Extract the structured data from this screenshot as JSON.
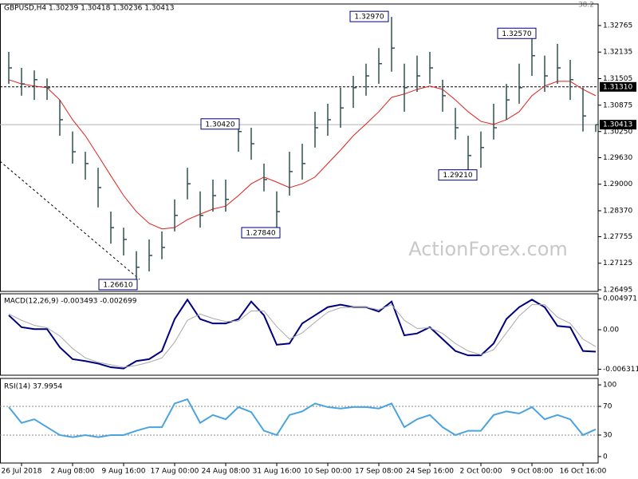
{
  "chart_data": [
    {
      "type": "ohlc",
      "title": "GBPUSD,H4  1.30239 1.30418 1.30236 1.30413",
      "color": "#2f4f4f",
      "high": [
        1.3214,
        1.3176,
        1.317,
        1.3151,
        1.31,
        1.3025,
        1.2977,
        1.2939,
        1.2835,
        1.2797,
        1.2741,
        1.2769,
        1.2788,
        1.2864,
        1.2939,
        1.2883,
        1.2911,
        1.2911,
        1.3042,
        1.3034,
        1.2949,
        1.2883,
        1.2977,
        1.2996,
        1.3072,
        1.3091,
        1.3129,
        1.3157,
        1.3186,
        1.3223,
        1.3297,
        1.3186,
        1.3205,
        1.3214,
        1.3148,
        1.3081,
        1.3015,
        1.3025,
        1.3091,
        1.3138,
        1.3186,
        1.3257,
        1.3205,
        1.3233,
        1.3195,
        1.3129,
        1.3042
      ],
      "low": [
        1.3138,
        1.311,
        1.31,
        1.31,
        1.3015,
        1.2949,
        1.2911,
        1.2845,
        1.2759,
        1.2731,
        1.2661,
        1.2693,
        1.2722,
        1.2788,
        1.2864,
        1.2797,
        1.2835,
        1.2835,
        1.2977,
        1.2958,
        1.2883,
        1.2784,
        1.2873,
        1.2911,
        1.2987,
        1.3015,
        1.3034,
        1.3081,
        1.311,
        1.3138,
        1.3167,
        1.3072,
        1.3119,
        1.3138,
        1.3072,
        1.3006,
        1.2921,
        1.2939,
        1.3006,
        1.3053,
        1.3091,
        1.3157,
        1.3119,
        1.3138,
        1.31,
        1.3025,
        1.3024
      ],
      "close": [
        1.3176,
        1.3138,
        1.3148,
        1.3129,
        1.3053,
        1.2977,
        1.2949,
        1.2892,
        1.2797,
        1.2769,
        1.2703,
        1.2731,
        1.275,
        1.2826,
        1.2901,
        1.2826,
        1.2873,
        1.2864,
        1.3025,
        1.2996,
        1.2911,
        1.2835,
        1.293,
        1.2949,
        1.3034,
        1.3053,
        1.3081,
        1.3129,
        1.3157,
        1.3186,
        1.3223,
        1.3129,
        1.3157,
        1.3176,
        1.311,
        1.3034,
        1.2968,
        1.2987,
        1.3034,
        1.31,
        1.3129,
        1.3205,
        1.3157,
        1.3176,
        1.3148,
        1.3062,
        1.30413
      ],
      "overlays": [
        {
          "color": "#e0201b",
          "values": [
            1.3148,
            1.3138,
            1.3133,
            1.3129,
            1.31,
            1.3053,
            1.3015,
            1.2968,
            1.292,
            1.2873,
            1.2835,
            1.2807,
            1.2794,
            1.2797,
            1.2816,
            1.2829,
            1.2841,
            1.2848,
            1.2873,
            1.2901,
            1.2917,
            1.2905,
            1.2892,
            1.2901,
            1.2917,
            1.2949,
            1.2981,
            1.3015,
            1.3043,
            1.3072,
            1.3106,
            1.3114,
            1.3125,
            1.3133,
            1.3125,
            1.31,
            1.3072,
            1.3049,
            1.3042,
            1.3053,
            1.3072,
            1.311,
            1.3133,
            1.3144,
            1.3144,
            1.3125,
            1.311
          ]
        }
      ],
      "ylim": [
        1.26457,
        1.33276
      ],
      "yticks": [
        1.32765,
        1.32135,
        1.31505,
        {
          "value": 1.3025,
          "label": "1.30250"
        },
        1.30875,
        {
          "value": 1.2963,
          "label": "1.29630"
        },
        {
          "value": 1.29,
          "label": "1.29000"
        },
        {
          "value": 1.2837,
          "label": "1.28370"
        },
        1.27755,
        1.27125,
        1.26495
      ],
      "levels": [
        {
          "value": 1.3131,
          "label": "1.31310"
        },
        {
          "value": 1.30413,
          "label": "1.30413"
        }
      ],
      "annotations": [
        {
          "value": 1.3297,
          "label": "1.32970"
        },
        {
          "value": 1.3257,
          "label": "1.32570"
        },
        {
          "value": 1.3042,
          "label": "1.30420"
        },
        {
          "value": 1.2784,
          "label": "1.27840"
        },
        {
          "value": 1.2921,
          "label": "1.29210"
        },
        {
          "value": 1.2661,
          "label": "1.26610"
        }
      ],
      "watermark": "ActionForex.com",
      "fib_label": "38.2"
    },
    {
      "type": "line",
      "title": "MACD(12,26,9) -0.003493 -0.002699",
      "series": [
        {
          "color": "#00007f",
          "values": [
            0.0023,
            0.0004,
            0.0001,
            0.0001,
            -0.0028,
            -0.0047,
            -0.005,
            -0.0054,
            -0.006,
            -0.0062,
            -0.005,
            -0.0047,
            -0.0034,
            0.0017,
            0.0048,
            0.0017,
            0.001,
            0.001,
            0.0017,
            0.0045,
            0.0023,
            -0.0024,
            -0.0022,
            0.001,
            0.0023,
            0.0036,
            0.004,
            0.0036,
            0.0036,
            0.0029,
            0.0045,
            -0.0009,
            -0.0006,
            0.0004,
            -0.0015,
            -0.0034,
            -0.0041,
            -0.0041,
            -0.0022,
            0.0017,
            0.0036,
            0.0048,
            0.0036,
            0.0006,
            0.0004,
            -0.0034,
            -0.0035
          ]
        },
        {
          "color": "#a9a9a9",
          "values": [
            0.0025,
            0.0015,
            0.0007,
            0.0003,
            -0.001,
            -0.003,
            -0.0045,
            -0.0052,
            -0.0056,
            -0.006,
            -0.0057,
            -0.0052,
            -0.0045,
            -0.002,
            0.0015,
            0.0025,
            0.0018,
            0.0013,
            0.0014,
            0.003,
            0.003,
            0.0005,
            -0.0015,
            -0.0005,
            0.0012,
            0.0028,
            0.0035,
            0.0036,
            0.0036,
            0.0032,
            0.004,
            0.0015,
            0.0002,
            0.0003,
            -0.0006,
            -0.0022,
            -0.0034,
            -0.004,
            -0.0032,
            -0.0005,
            0.0022,
            0.004,
            0.004,
            0.002,
            0.001,
            -0.0015,
            -0.0027
          ]
        }
      ],
      "ylim": [
        -0.007268,
        0.005736
      ],
      "yticks": [
        0.004971,
        {
          "value": 0,
          "label": "0.00"
        },
        -0.006311
      ]
    },
    {
      "type": "line",
      "title": "RSI(14) 37.9954",
      "series": [
        {
          "color": "#4aa3df",
          "values": [
            69,
            47,
            52,
            41,
            30,
            27,
            30,
            27,
            30,
            30,
            36,
            41,
            41,
            74,
            80,
            47,
            58,
            52,
            69,
            62,
            36,
            30,
            58,
            63,
            74,
            69,
            67,
            69,
            69,
            67,
            74,
            41,
            52,
            58,
            41,
            30,
            36,
            36,
            58,
            63,
            60,
            69,
            52,
            58,
            52,
            30,
            38
          ]
        }
      ],
      "ylim": [
        -9,
        109
      ],
      "yticks": [
        100,
        70,
        30,
        0
      ],
      "levels": [
        70,
        30
      ],
      "categories": [
        null,
        "26 Jul 2018",
        null,
        null,
        null,
        "2 Aug 08:00",
        null,
        null,
        null,
        "9 Aug 16:00",
        null,
        null,
        null,
        "17 Aug 00:00",
        null,
        null,
        null,
        "24 Aug 08:00",
        null,
        null,
        null,
        "31 Aug 16:00",
        null,
        null,
        null,
        "10 Sep 00:00",
        null,
        null,
        null,
        "17 Sep 08:00",
        null,
        null,
        null,
        "24 Sep 16:00",
        null,
        null,
        null,
        "2 Oct 00:00",
        null,
        null,
        null,
        "9 Oct 08:00",
        null,
        null,
        null,
        "16 Oct 16:00",
        null
      ]
    }
  ]
}
